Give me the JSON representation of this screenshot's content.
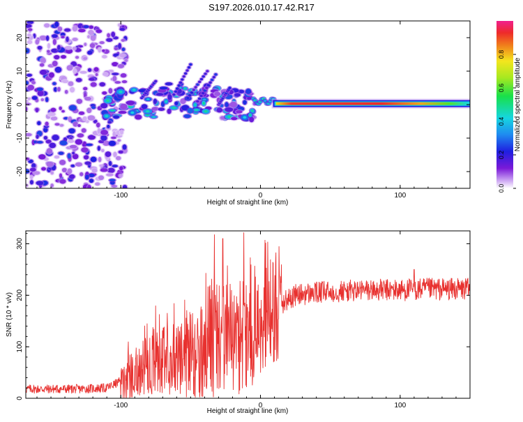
{
  "title": "S197.2026.010.17.42.R17",
  "chart_data": [
    {
      "type": "heatmap",
      "xlabel": "Height of straight line (km)",
      "ylabel": "Frequency (Hz)",
      "xlim": [
        -168,
        150
      ],
      "ylim": [
        -25,
        25
      ],
      "xticks": [
        -100,
        0,
        100
      ],
      "xtick_labels": [
        "-100",
        "0",
        "100"
      ],
      "yticks": [
        -20,
        -10,
        0,
        10,
        20
      ],
      "ytick_labels": [
        "-20",
        "-10",
        "0",
        "10",
        "20"
      ],
      "colorbar": {
        "label": "Normalized spectral amplitude",
        "range": [
          0,
          1
        ],
        "ticks": [
          0.0,
          0.2,
          0.4,
          0.6,
          0.8
        ],
        "tick_labels": [
          "0.0",
          "0.2",
          "0.4",
          "0.6",
          "0.8"
        ]
      },
      "ridge": {
        "description": "strong signal band near 0 Hz from about 10 km upward",
        "x_start": 10,
        "x_end": 150,
        "frequency": 0.3,
        "peak_amplitude": 0.95
      },
      "scatter_regions": [
        {
          "name": "noise",
          "x_range": [
            -168,
            -100
          ],
          "y_range": [
            -25,
            25
          ],
          "amplitude_range": [
            0.05,
            0.3
          ]
        },
        {
          "name": "transition",
          "x_range": [
            -110,
            -5
          ],
          "y_range": [
            -5,
            9
          ],
          "amplitude_range": [
            0.1,
            0.35
          ]
        }
      ]
    },
    {
      "type": "line",
      "xlabel": "Height of straight line (km)",
      "ylabel": "SNR (10 * v/v)",
      "xlim": [
        -168,
        150
      ],
      "ylim": [
        0,
        325
      ],
      "xticks": [
        -100,
        0,
        100
      ],
      "xtick_labels": [
        "-100",
        "0",
        "100"
      ],
      "yticks": [
        0,
        100,
        200,
        300
      ],
      "ytick_labels": [
        "0",
        "100",
        "200",
        "300"
      ],
      "series": [
        {
          "name": "SNR",
          "color": "#e8312f",
          "trend": {
            "x": [
              -168,
              -130,
              -110,
              -95,
              -80,
              -60,
              -45,
              -35,
              -25,
              -15,
              -5,
              5,
              15,
              25,
              40,
              60,
              80,
              100,
              120,
              150
            ],
            "y": [
              18,
              18,
              20,
              40,
              70,
              80,
              95,
              110,
              120,
              115,
              135,
              170,
              185,
              200,
              205,
              208,
              210,
              210,
              212,
              212
            ]
          },
          "peaks": [
            {
              "x": -33,
              "y": 318
            },
            {
              "x": -27,
              "y": 310
            },
            {
              "x": -12,
              "y": 322
            },
            {
              "x": -75,
              "y": 180
            },
            {
              "x": 110,
              "y": 250
            }
          ]
        }
      ]
    }
  ]
}
